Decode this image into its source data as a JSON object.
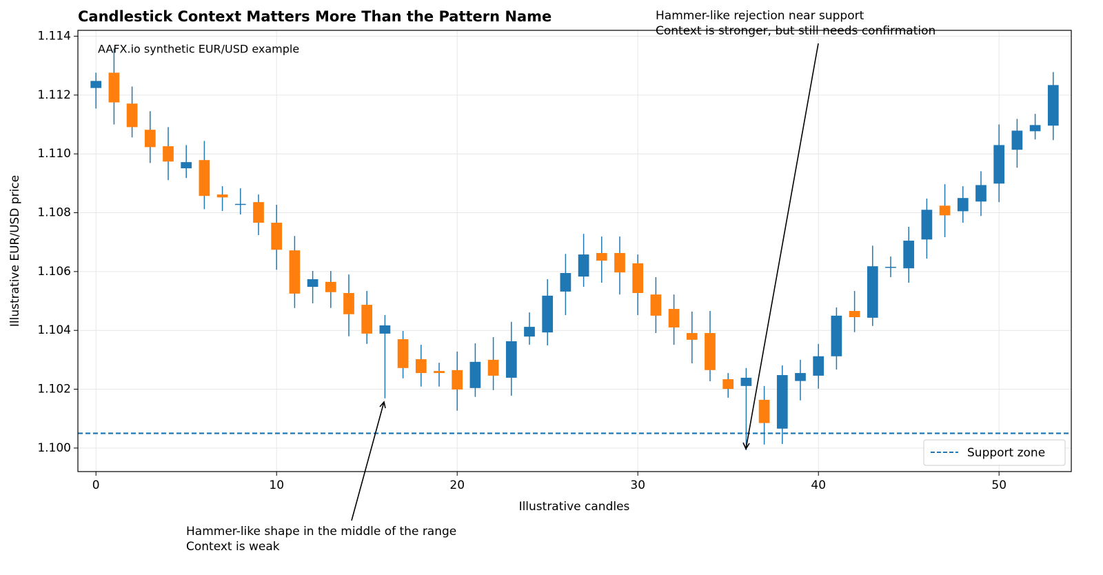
{
  "chart_data": {
    "type": "candlestick",
    "title": "Candlestick Context Matters More Than the Pattern Name",
    "subtitle": "AAFX.io synthetic EUR/USD example",
    "x_label": "Illustrative candles",
    "y_label": "Illustrative EUR/USD price",
    "xlim": [
      -1,
      54
    ],
    "xticks": [
      0,
      10,
      20,
      30,
      40,
      50
    ],
    "ylim": [
      1.0992,
      1.1142
    ],
    "yticks": [
      {
        "value": 1.1,
        "label": "1.100"
      },
      1.102,
      1.104,
      1.106,
      1.108,
      {
        "value": 1.11,
        "label": "1.110"
      },
      1.112,
      1.114
    ],
    "grid": true,
    "up_color": "#1f77b4",
    "down_color": "#ff7f0e",
    "x": [
      0,
      1,
      2,
      3,
      4,
      5,
      6,
      7,
      8,
      9,
      10,
      11,
      12,
      13,
      14,
      15,
      16,
      17,
      18,
      19,
      20,
      21,
      22,
      23,
      24,
      25,
      26,
      27,
      28,
      29,
      30,
      31,
      32,
      33,
      34,
      35,
      36,
      37,
      38,
      39,
      40,
      41,
      42,
      43,
      44,
      45,
      46,
      47,
      48,
      49,
      50,
      51,
      52,
      53
    ],
    "open": [
      1.11224,
      1.11276,
      1.11171,
      1.11082,
      1.11026,
      1.10951,
      1.10979,
      1.10862,
      1.10828,
      1.10836,
      1.10766,
      1.10672,
      1.10548,
      1.10565,
      1.10527,
      1.10487,
      1.10389,
      1.1037,
      1.10302,
      1.10262,
      1.10265,
      1.10204,
      1.103,
      1.10239,
      1.10379,
      1.10393,
      1.10532,
      1.10583,
      1.10663,
      1.10663,
      1.10628,
      1.10522,
      1.10473,
      1.10391,
      1.10391,
      1.10234,
      1.10211,
      1.10164,
      1.10066,
      1.10228,
      1.10246,
      1.10312,
      1.10466,
      1.10443,
      1.10614,
      1.10611,
      1.10709,
      1.10824,
      1.10805,
      1.10838,
      1.10899,
      1.11014,
      1.11077,
      1.11096
    ],
    "high": [
      1.11276,
      1.11358,
      1.11229,
      1.11145,
      1.11091,
      1.1103,
      1.11044,
      1.1089,
      1.10883,
      1.10862,
      1.10827,
      1.10721,
      1.10602,
      1.10602,
      1.1059,
      1.10534,
      1.10452,
      1.10398,
      1.10351,
      1.1029,
      1.10328,
      1.10356,
      1.10377,
      1.10429,
      1.10461,
      1.10574,
      1.1066,
      1.10728,
      1.10719,
      1.10719,
      1.10658,
      1.10581,
      1.10522,
      1.10464,
      1.10466,
      1.10255,
      1.10272,
      1.10211,
      1.10281,
      1.103,
      1.10354,
      1.10478,
      1.10534,
      1.10688,
      1.10651,
      1.10752,
      1.10848,
      1.10897,
      1.1089,
      1.10941,
      1.111,
      1.11119,
      1.11136,
      1.11278
    ],
    "low": [
      1.11154,
      1.111,
      1.11056,
      1.10969,
      1.10911,
      1.10918,
      1.10812,
      1.10806,
      1.10794,
      1.10724,
      1.10606,
      1.10476,
      1.10492,
      1.10476,
      1.1038,
      1.10354,
      1.10169,
      1.10237,
      1.10209,
      1.10209,
      1.10127,
      1.10174,
      1.10197,
      1.10178,
      1.10351,
      1.10349,
      1.10452,
      1.10548,
      1.10562,
      1.10522,
      1.10452,
      1.10391,
      1.10351,
      1.10288,
      1.10227,
      1.10171,
      1.09993,
      1.10012,
      1.10014,
      1.10162,
      1.10202,
      1.10267,
      1.10394,
      1.10415,
      1.10581,
      1.10562,
      1.10644,
      1.10717,
      1.10766,
      1.10789,
      1.10836,
      1.10953,
      1.11049,
      1.11047
    ],
    "close": [
      1.11248,
      1.11175,
      1.11091,
      1.11023,
      1.10974,
      1.10972,
      1.10857,
      1.10852,
      1.1083,
      1.10766,
      1.10674,
      1.10525,
      1.10574,
      1.1053,
      1.10455,
      1.10389,
      1.10417,
      1.10272,
      1.10255,
      1.10255,
      1.10199,
      1.10293,
      1.10246,
      1.10363,
      1.10412,
      1.10518,
      1.10595,
      1.10658,
      1.10637,
      1.10597,
      1.10527,
      1.1045,
      1.1041,
      1.10368,
      1.10265,
      1.10201,
      1.10239,
      1.10085,
      1.10248,
      1.10255,
      1.10312,
      1.1045,
      1.10445,
      1.10618,
      1.10616,
      1.10705,
      1.1081,
      1.10791,
      1.1085,
      1.10894,
      1.1103,
      1.11079,
      1.11098,
      1.11234
    ],
    "support": {
      "name": "Support zone",
      "value": 1.1005,
      "color": "#1f77b4"
    },
    "legend": "lower right",
    "annotations": [
      {
        "lines": [
          "Hammer-like shape in the middle of the range",
          "Context is weak"
        ]
      },
      {
        "lines": [
          "Hammer-like rejection near support",
          "Context is stronger, but still needs confirmation"
        ]
      }
    ]
  }
}
